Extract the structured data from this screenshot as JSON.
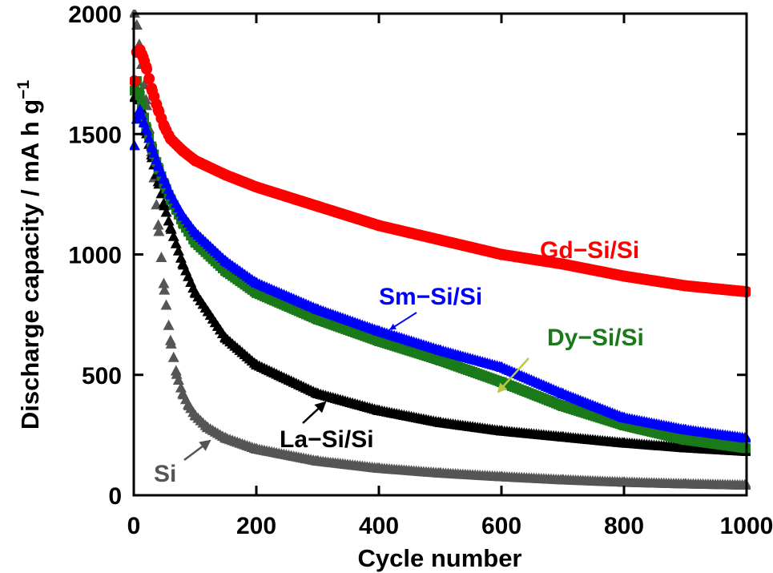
{
  "chart_data": {
    "type": "scatter",
    "xlabel": "Cycle number",
    "ylabel": "Discharge capacity / mA h g",
    "ylabel_sup": "−1",
    "xlim": [
      0,
      1000
    ],
    "ylim": [
      0,
      2000
    ],
    "xticks": [
      "0",
      "200",
      "400",
      "600",
      "800",
      "1000"
    ],
    "yticks": [
      "0",
      "500",
      "1000",
      "1500",
      "2000"
    ],
    "grid": false,
    "legend": "inline labels with arrows",
    "series": [
      {
        "name": "Gd−Si/Si",
        "color": "#ff0000",
        "marker": "circle",
        "x": [
          1,
          5,
          10,
          15,
          20,
          30,
          40,
          50,
          60,
          80,
          100,
          150,
          200,
          300,
          400,
          500,
          600,
          700,
          800,
          900,
          1000
        ],
        "y": [
          1720,
          1840,
          1850,
          1820,
          1780,
          1680,
          1600,
          1530,
          1480,
          1430,
          1390,
          1330,
          1280,
          1200,
          1120,
          1060,
          1000,
          960,
          910,
          870,
          845
        ]
      },
      {
        "name": "Sm−Si/Si",
        "color": "#0000ff",
        "marker": "triangle",
        "x": [
          1,
          5,
          10,
          20,
          30,
          40,
          50,
          60,
          80,
          100,
          150,
          200,
          300,
          400,
          500,
          600,
          700,
          800,
          900,
          1000
        ],
        "y": [
          1450,
          1560,
          1600,
          1520,
          1440,
          1370,
          1310,
          1250,
          1160,
          1090,
          970,
          880,
          770,
          680,
          600,
          530,
          420,
          320,
          270,
          235
        ]
      },
      {
        "name": "Dy−Si/Si",
        "color": "#1a7a1a",
        "marker": "square",
        "x": [
          1,
          5,
          10,
          20,
          30,
          40,
          50,
          60,
          80,
          100,
          150,
          200,
          300,
          400,
          500,
          600,
          700,
          800,
          900,
          1000
        ],
        "y": [
          1680,
          1720,
          1660,
          1530,
          1440,
          1360,
          1290,
          1230,
          1130,
          1050,
          930,
          840,
          730,
          640,
          560,
          470,
          370,
          290,
          230,
          195
        ]
      },
      {
        "name": "La−Si/Si",
        "color": "#000000",
        "marker": "triangle",
        "x": [
          1,
          5,
          10,
          20,
          30,
          40,
          50,
          60,
          80,
          100,
          150,
          200,
          300,
          400,
          500,
          600,
          700,
          800,
          900,
          1000
        ],
        "y": [
          1650,
          1680,
          1640,
          1510,
          1400,
          1300,
          1200,
          1110,
          960,
          840,
          650,
          540,
          420,
          350,
          300,
          265,
          240,
          215,
          195,
          180
        ]
      },
      {
        "name": "Si",
        "color": "#555555",
        "marker": "triangle",
        "x": [
          1,
          5,
          10,
          20,
          30,
          40,
          50,
          60,
          70,
          80,
          90,
          100,
          120,
          150,
          200,
          300,
          400,
          500,
          600,
          700,
          800,
          900,
          1000
        ],
        "y": [
          2000,
          1950,
          1850,
          1640,
          1400,
          1120,
          850,
          640,
          500,
          420,
          370,
          330,
          280,
          235,
          190,
          140,
          110,
          90,
          75,
          62,
          52,
          45,
          40
        ]
      }
    ],
    "annotations": [
      {
        "text": "Gd−Si/Si",
        "series": "Gd−Si/Si"
      },
      {
        "text": "Sm−Si/Si",
        "series": "Sm−Si/Si"
      },
      {
        "text": "Dy−Si/Si",
        "series": "Dy−Si/Si"
      },
      {
        "text": "La−Si/Si",
        "series": "La−Si/Si"
      },
      {
        "text": "Si",
        "series": "Si"
      }
    ]
  }
}
